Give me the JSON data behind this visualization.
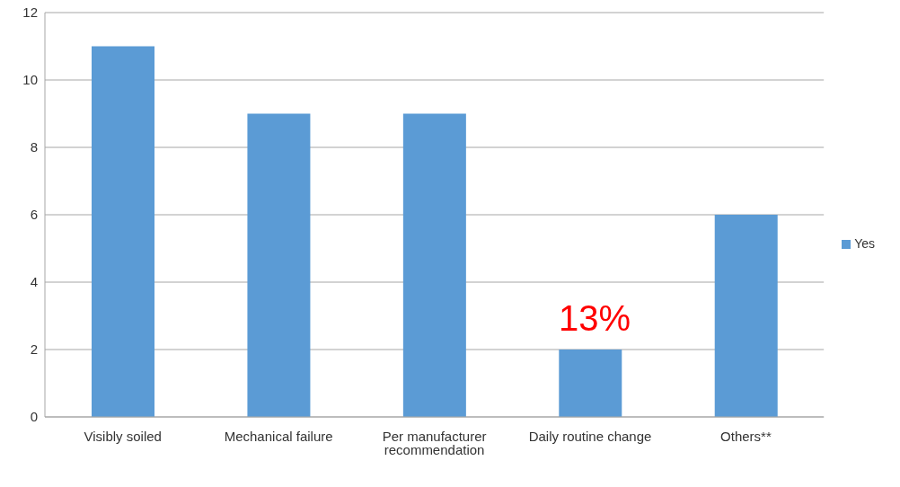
{
  "chart_data": {
    "type": "bar",
    "categories": [
      "Visibly soiled",
      "Mechanical failure",
      "Per manufacturer recommendation",
      "Daily routine change",
      "Others**"
    ],
    "series": [
      {
        "name": "Yes",
        "color": "#5b9bd5",
        "values": [
          11,
          9,
          9,
          2,
          6
        ]
      }
    ],
    "ylim": [
      0,
      12
    ],
    "yticks": [
      0,
      2,
      4,
      6,
      8,
      10,
      12
    ],
    "grid": "y",
    "legend": "right",
    "annotations": [
      "13%"
    ]
  }
}
